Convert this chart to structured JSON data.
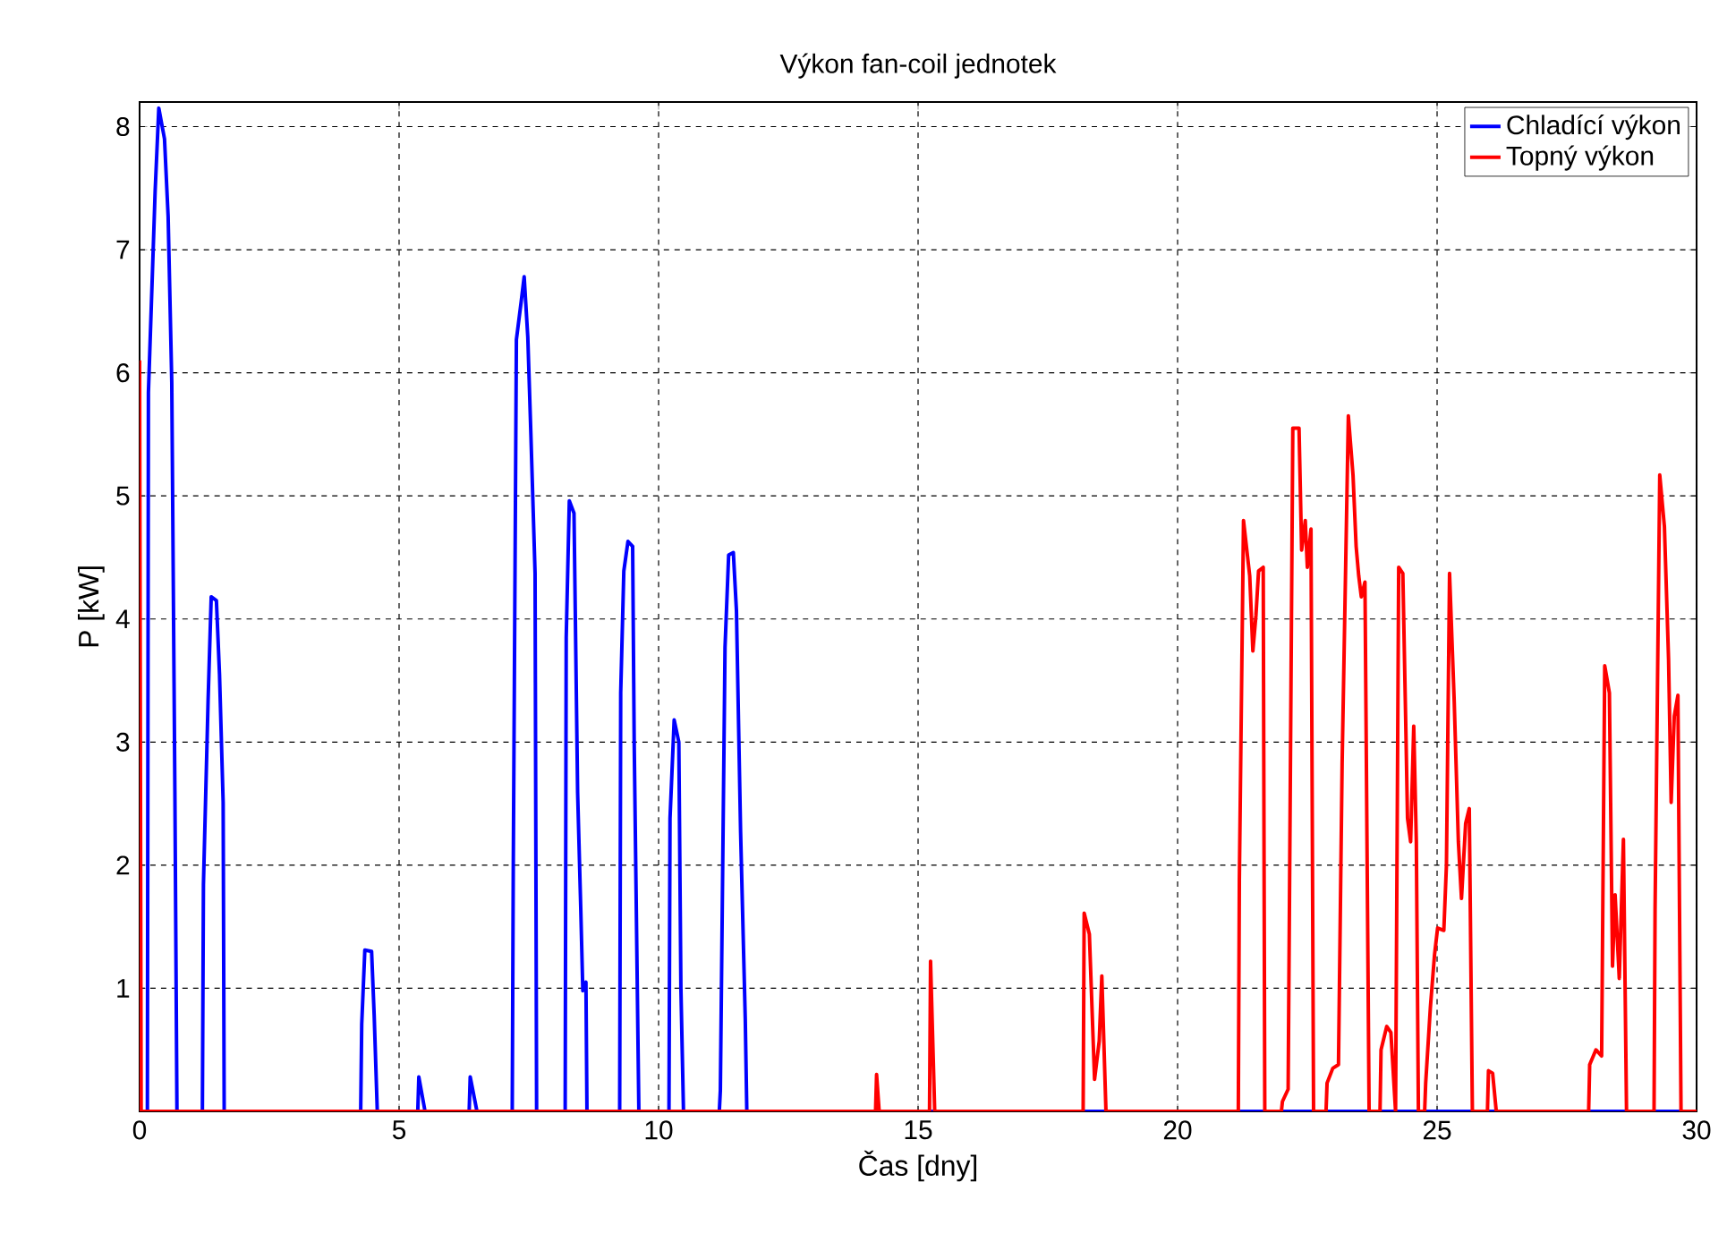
{
  "chart_data": {
    "type": "line",
    "title": "Výkon fan-coil jednotek",
    "xlabel": "Čas [dny]",
    "ylabel": "P [kW]",
    "xlim": [
      0,
      30
    ],
    "xticks": [
      0,
      5,
      10,
      15,
      20,
      25,
      30
    ],
    "ylim": [
      0,
      8.2
    ],
    "yticks": [
      1,
      2,
      3,
      4,
      5,
      6,
      7,
      8
    ],
    "grid": true,
    "legend": "top right",
    "line_style": "solid",
    "marker": "none",
    "series": [
      {
        "name": "Chladící výkon",
        "color": "#0000ff",
        "x": [
          0,
          0.15,
          0.17,
          0.3,
          0.37,
          0.48,
          0.55,
          0.62,
          0.68,
          0.72,
          1.21,
          1.23,
          1.32,
          1.38,
          1.48,
          1.54,
          1.61,
          1.63,
          4.26,
          4.28,
          4.34,
          4.47,
          4.52,
          4.58,
          5.36,
          5.38,
          5.5,
          6.35,
          6.37,
          6.5,
          7.18,
          7.2,
          7.26,
          7.35,
          7.41,
          7.48,
          7.54,
          7.62,
          7.65,
          8.2,
          8.22,
          8.28,
          8.37,
          8.44,
          8.5,
          8.54,
          8.6,
          8.62,
          9.25,
          9.27,
          9.33,
          9.41,
          9.5,
          9.53,
          9.62,
          10.2,
          10.22,
          10.3,
          10.39,
          10.43,
          10.48,
          11.17,
          11.19,
          11.28,
          11.35,
          11.44,
          11.5,
          11.58,
          11.67,
          11.7,
          30
        ],
        "values": [
          0,
          0,
          5.84,
          7.48,
          8.15,
          7.9,
          7.27,
          5.92,
          2.6,
          0,
          0,
          1.84,
          3.34,
          4.18,
          4.15,
          3.55,
          2.51,
          0,
          0,
          0.71,
          1.31,
          1.3,
          0.78,
          0,
          0,
          0.28,
          0,
          0,
          0.28,
          0,
          0,
          1.97,
          6.27,
          6.57,
          6.78,
          6.29,
          5.49,
          4.37,
          0,
          0,
          3.85,
          4.96,
          4.86,
          2.59,
          1.65,
          0.98,
          1.05,
          0,
          0,
          3.4,
          4.39,
          4.63,
          4.59,
          2.99,
          0,
          0,
          2.38,
          3.18,
          3.0,
          1.0,
          0,
          0,
          0.17,
          3.77,
          4.52,
          4.54,
          4.07,
          2.27,
          0.75,
          0,
          0
        ]
      },
      {
        "name": "Topný výkon",
        "color": "#ff0000",
        "x": [
          0,
          0.03,
          14.18,
          14.2,
          14.25,
          15.22,
          15.24,
          15.32,
          18.18,
          18.2,
          18.3,
          18.4,
          18.49,
          18.54,
          18.62,
          21.17,
          21.19,
          21.27,
          21.39,
          21.45,
          21.51,
          21.56,
          21.65,
          21.68,
          22.0,
          22.02,
          22.13,
          22.22,
          22.34,
          22.39,
          22.46,
          22.5,
          22.57,
          22.62,
          22.86,
          22.88,
          22.99,
          23.1,
          23.17,
          23.29,
          23.38,
          23.44,
          23.49,
          23.54,
          23.61,
          23.69,
          23.9,
          23.92,
          24.03,
          24.11,
          24.2,
          24.26,
          24.34,
          24.4,
          24.43,
          24.49,
          24.55,
          24.6,
          24.64,
          24.76,
          24.78,
          24.87,
          24.95,
          25.01,
          25.13,
          25.18,
          25.24,
          25.33,
          25.41,
          25.47,
          25.55,
          25.62,
          25.68,
          25.97,
          25.99,
          26.07,
          26.14,
          27.92,
          27.94,
          28.06,
          28.17,
          28.23,
          28.32,
          28.38,
          28.43,
          28.51,
          28.59,
          28.65,
          29.18,
          29.2,
          29.29,
          29.38,
          29.46,
          29.51,
          29.57,
          29.64,
          29.7,
          30
        ],
        "values": [
          6.1,
          0,
          0,
          0.3,
          0,
          0,
          1.22,
          0,
          0,
          1.61,
          1.44,
          0.26,
          0.57,
          1.1,
          0,
          0,
          1.88,
          4.8,
          4.35,
          3.74,
          4.03,
          4.39,
          4.42,
          0,
          0,
          0.08,
          0.18,
          5.55,
          5.55,
          4.56,
          4.8,
          4.42,
          4.73,
          0,
          0,
          0.23,
          0.35,
          0.38,
          2.82,
          5.65,
          5.17,
          4.59,
          4.35,
          4.18,
          4.3,
          0,
          0,
          0.5,
          0.69,
          0.64,
          0,
          4.42,
          4.37,
          3.06,
          2.38,
          2.19,
          3.13,
          2.19,
          0,
          0,
          0.23,
          0.84,
          1.27,
          1.49,
          1.47,
          2.0,
          4.37,
          3.33,
          2.19,
          1.73,
          2.34,
          2.46,
          0,
          0,
          0.33,
          0.31,
          0,
          0,
          0.38,
          0.5,
          0.45,
          3.62,
          3.4,
          1.18,
          1.76,
          1.08,
          2.21,
          0,
          0,
          1.64,
          5.17,
          4.75,
          3.67,
          2.51,
          3.21,
          3.38,
          0,
          0
        ]
      }
    ]
  }
}
